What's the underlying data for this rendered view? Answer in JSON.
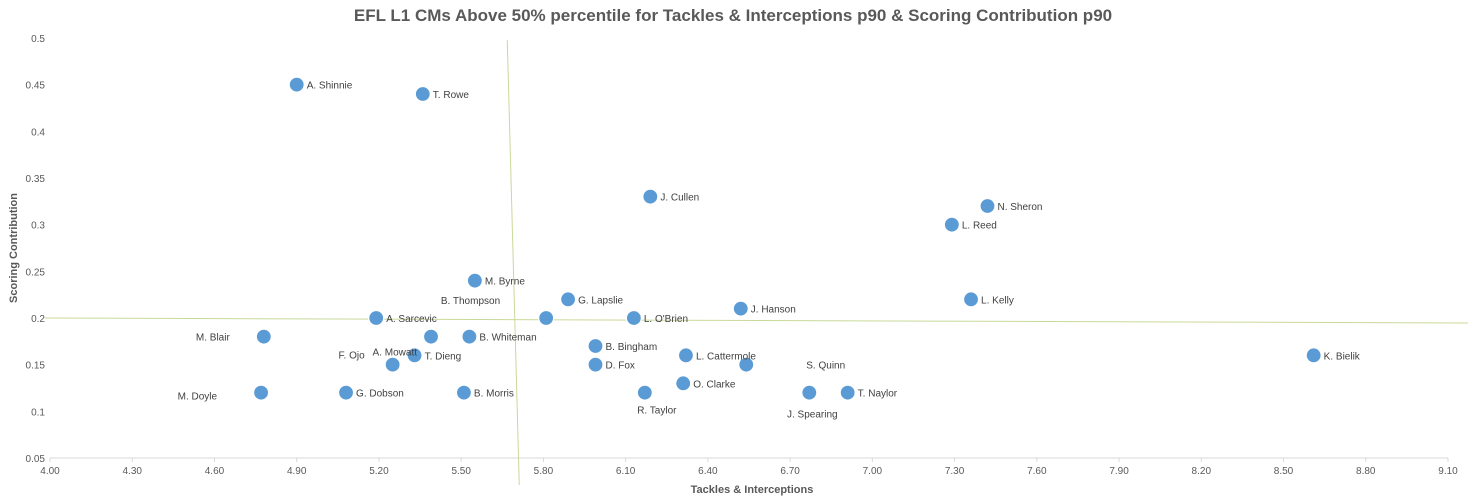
{
  "chart_data": {
    "type": "scatter",
    "title": "EFL L1  CMs Above 50% percentile for Tackles & Interceptions p90 & Scoring Contribution p90",
    "xlabel": "Tackles & Interceptions",
    "ylabel": "Scoring Contribution",
    "xlim": [
      4.0,
      9.1
    ],
    "ylim": [
      0.05,
      0.5
    ],
    "x_ticks": [
      "4.00",
      "4.30",
      "4.60",
      "4.90",
      "5.20",
      "5.50",
      "5.80",
      "6.10",
      "6.40",
      "6.70",
      "7.00",
      "7.30",
      "7.60",
      "7.90",
      "8.20",
      "8.50",
      "8.80",
      "9.10"
    ],
    "y_ticks": [
      "0.05",
      "0.1",
      "0.15",
      "0.2",
      "0.25",
      "0.3",
      "0.35",
      "0.4",
      "0.45",
      "0.5"
    ],
    "grid": false,
    "marker_color": "#5B9BD5",
    "reference_lines": {
      "x": 5.69,
      "y": 0.2,
      "color": "#c9d99a"
    },
    "points": [
      {
        "label": "A. Shinnie",
        "x": 4.9,
        "y": 0.45
      },
      {
        "label": "T. Rowe",
        "x": 5.36,
        "y": 0.44
      },
      {
        "label": "J. Cullen",
        "x": 6.19,
        "y": 0.33
      },
      {
        "label": "N. Sheron",
        "x": 7.42,
        "y": 0.32
      },
      {
        "label": "L. Reed",
        "x": 7.29,
        "y": 0.3
      },
      {
        "label": "M. Byrne",
        "x": 5.55,
        "y": 0.24
      },
      {
        "label": "G. Lapslie",
        "x": 5.89,
        "y": 0.22
      },
      {
        "label": "B. Thompson",
        "x": 5.81,
        "y": 0.2
      },
      {
        "label": "L. Kelly",
        "x": 7.36,
        "y": 0.22
      },
      {
        "label": "J. Hanson",
        "x": 6.52,
        "y": 0.21
      },
      {
        "label": "A. Sarcevic",
        "x": 5.19,
        "y": 0.2
      },
      {
        "label": "L. O'Brien",
        "x": 6.13,
        "y": 0.2
      },
      {
        "label": "M. Blair",
        "x": 4.78,
        "y": 0.18
      },
      {
        "label": "A. Mowatt",
        "x": 5.39,
        "y": 0.18
      },
      {
        "label": "B. Whiteman",
        "x": 5.53,
        "y": 0.18
      },
      {
        "label": "B. Bingham",
        "x": 5.99,
        "y": 0.17
      },
      {
        "label": "T. Dieng",
        "x": 5.33,
        "y": 0.16
      },
      {
        "label": "F. Ojo",
        "x": 5.25,
        "y": 0.15
      },
      {
        "label": "L. Cattermole",
        "x": 6.32,
        "y": 0.16
      },
      {
        "label": "S. Quinn",
        "x": 6.54,
        "y": 0.15
      },
      {
        "label": "K. Bielik",
        "x": 8.61,
        "y": 0.16
      },
      {
        "label": "D. Fox",
        "x": 5.99,
        "y": 0.15
      },
      {
        "label": "O. Clarke",
        "x": 6.31,
        "y": 0.13
      },
      {
        "label": "M. Doyle",
        "x": 4.77,
        "y": 0.12
      },
      {
        "label": "G. Dobson",
        "x": 5.08,
        "y": 0.12
      },
      {
        "label": "B. Morris",
        "x": 5.51,
        "y": 0.12
      },
      {
        "label": "R. Taylor",
        "x": 6.17,
        "y": 0.12
      },
      {
        "label": "J. Spearing",
        "x": 6.77,
        "y": 0.12
      },
      {
        "label": "T. Naylor",
        "x": 6.91,
        "y": 0.12
      }
    ]
  }
}
